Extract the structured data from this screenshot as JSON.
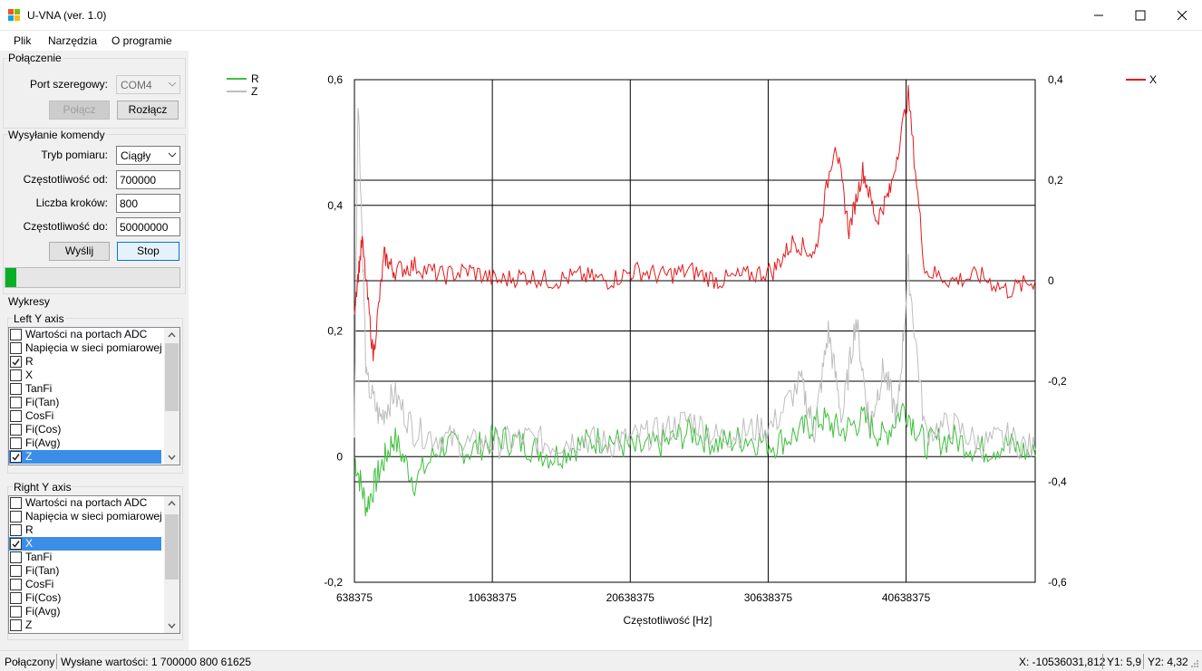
{
  "window": {
    "title": "U-VNA (ver. 1.0)"
  },
  "menu": [
    "Plik",
    "Narzędzia",
    "O programie"
  ],
  "connection": {
    "group_title": "Połączenie",
    "port_label": "Port szeregowy:",
    "port_value": "COM4",
    "connect_label": "Połącz",
    "disconnect_label": "Rozłącz"
  },
  "command": {
    "group_title": "Wysyłanie komendy",
    "mode_label": "Tryb pomiaru:",
    "mode_value": "Ciągły",
    "freq_from_label": "Częstotliwość od:",
    "freq_from_value": "700000",
    "steps_label": "Liczba kroków:",
    "steps_value": "800",
    "freq_to_label": "Częstotliwość do:",
    "freq_to_value": "50000000",
    "send_label": "Wyślij",
    "stop_label": "Stop",
    "progress_fraction": 0.06
  },
  "plots": {
    "group_title": "Wykresy",
    "left_axis_title": "Left Y axis",
    "right_axis_title": "Right Y axis",
    "left_items": [
      {
        "label": "Wartości na portach ADC",
        "checked": false
      },
      {
        "label": "Napięcia w sieci pomiarowej",
        "checked": false
      },
      {
        "label": "R",
        "checked": true
      },
      {
        "label": "X",
        "checked": false
      },
      {
        "label": "TanFi",
        "checked": false
      },
      {
        "label": "Fi(Tan)",
        "checked": false
      },
      {
        "label": "CosFi",
        "checked": false
      },
      {
        "label": "Fi(Cos)",
        "checked": false
      },
      {
        "label": "Fi(Avg)",
        "checked": false
      },
      {
        "label": "Z",
        "checked": true,
        "selected": true
      }
    ],
    "right_items": [
      {
        "label": "Wartości na portach ADC",
        "checked": false
      },
      {
        "label": "Napięcia w sieci pomiarowej",
        "checked": false
      },
      {
        "label": "R",
        "checked": false
      },
      {
        "label": "X",
        "checked": true,
        "selected": true
      },
      {
        "label": "TanFi",
        "checked": false
      },
      {
        "label": "Fi(Tan)",
        "checked": false
      },
      {
        "label": "CosFi",
        "checked": false
      },
      {
        "label": "Fi(Cos)",
        "checked": false
      },
      {
        "label": "Fi(Avg)",
        "checked": false
      },
      {
        "label": "Z",
        "checked": false
      }
    ]
  },
  "status": {
    "connected": "Połączony",
    "sent": "Wysłane wartości: 1 700000 800 61625",
    "x": "X: -10536031,812",
    "y1": "Y1: 5,9",
    "y2": "Y2: 4,32"
  },
  "colors": {
    "R": "#ff0000",
    "X": "#e31a1c",
    "Z": "#bdbdbd",
    "R_left": "#3fbf3f"
  },
  "chart_data": {
    "type": "line",
    "xlabel": "Częstotliwość [Hz]",
    "x_tick_labels": [
      "638375",
      "10638375",
      "20638375",
      "30638375",
      "40638375"
    ],
    "x_ticks": [
      638375,
      10638375,
      20638375,
      30638375,
      40638375
    ],
    "xlim": [
      638375,
      50000000
    ],
    "left_ylim": [
      -0.2,
      0.6
    ],
    "left_y_ticks": [
      -0.2,
      0,
      0.2,
      0.4,
      0.6
    ],
    "left_y_tick_labels": [
      "-0,2",
      "0",
      "0,2",
      "0,4",
      "0,6"
    ],
    "right_ylim": [
      -0.6,
      0.4
    ],
    "right_y_ticks": [
      -0.6,
      -0.4,
      -0.2,
      0,
      0.2,
      0.4
    ],
    "right_y_tick_labels": [
      "-0,6",
      "-0,4",
      "-0,2",
      "0",
      "0,2",
      "0,4"
    ],
    "legend_left": [
      {
        "name": "R",
        "color": "#3fbf3f"
      },
      {
        "name": "Z",
        "color": "#bdbdbd"
      }
    ],
    "legend_right": [
      {
        "name": "X",
        "color": "#e31a1c"
      }
    ],
    "grid": true,
    "series": [
      {
        "name": "R",
        "axis": "left",
        "color": "#3fbf3f",
        "x": [
          638375,
          1500000,
          2500000,
          3500000,
          5000000,
          7000000,
          9000000,
          11000000,
          13000000,
          15000000,
          17000000,
          19000000,
          21000000,
          23000000,
          25000000,
          27000000,
          29000000,
          31000000,
          33000000,
          34500000,
          36000000,
          37500000,
          39000000,
          40500000,
          42000000,
          44000000,
          46000000,
          48000000,
          50000000
        ],
        "y": [
          0.0,
          -0.08,
          -0.02,
          0.03,
          -0.04,
          0.02,
          0.01,
          0.03,
          0.02,
          0.0,
          0.02,
          0.03,
          0.01,
          0.02,
          0.04,
          0.02,
          0.03,
          0.02,
          0.04,
          0.06,
          0.04,
          0.06,
          0.03,
          0.08,
          0.02,
          0.03,
          0.01,
          0.02,
          0.0
        ]
      },
      {
        "name": "Z",
        "axis": "left",
        "color": "#bdbdbd",
        "x": [
          638375,
          900000,
          1500000,
          2500000,
          3500000,
          5000000,
          7000000,
          9000000,
          11000000,
          13000000,
          15000000,
          17000000,
          19000000,
          21000000,
          23000000,
          25000000,
          27000000,
          29000000,
          31000000,
          33000000,
          34000000,
          35000000,
          36000000,
          37000000,
          38000000,
          39000000,
          40000000,
          40800000,
          42000000,
          44000000,
          46000000,
          48000000,
          50000000
        ],
        "y": [
          0.05,
          0.58,
          0.12,
          0.06,
          0.1,
          0.04,
          0.03,
          0.02,
          0.02,
          0.03,
          0.02,
          0.03,
          0.02,
          0.03,
          0.04,
          0.06,
          0.03,
          0.04,
          0.05,
          0.12,
          0.04,
          0.2,
          0.06,
          0.22,
          0.05,
          0.14,
          0.06,
          0.3,
          0.04,
          0.05,
          0.02,
          0.03,
          0.01
        ]
      },
      {
        "name": "X",
        "axis": "right",
        "color": "#e31a1c",
        "x": [
          638375,
          1200000,
          2000000,
          2800000,
          3500000,
          5000000,
          7000000,
          9000000,
          11000000,
          13000000,
          15000000,
          17000000,
          19000000,
          21000000,
          23000000,
          25000000,
          27000000,
          29000000,
          31000000,
          32500000,
          34000000,
          35500000,
          36500000,
          37500000,
          38500000,
          39500000,
          40800000,
          42000000,
          44000000,
          46000000,
          48000000,
          50000000
        ],
        "y": [
          -0.05,
          0.08,
          -0.15,
          0.05,
          0.02,
          0.03,
          0.01,
          0.02,
          0.0,
          0.01,
          0.0,
          0.01,
          0.0,
          0.02,
          0.01,
          0.02,
          0.0,
          0.01,
          0.02,
          0.08,
          0.05,
          0.28,
          0.1,
          0.22,
          0.12,
          0.18,
          0.37,
          0.02,
          0.0,
          0.01,
          -0.02,
          0.0
        ]
      }
    ]
  }
}
